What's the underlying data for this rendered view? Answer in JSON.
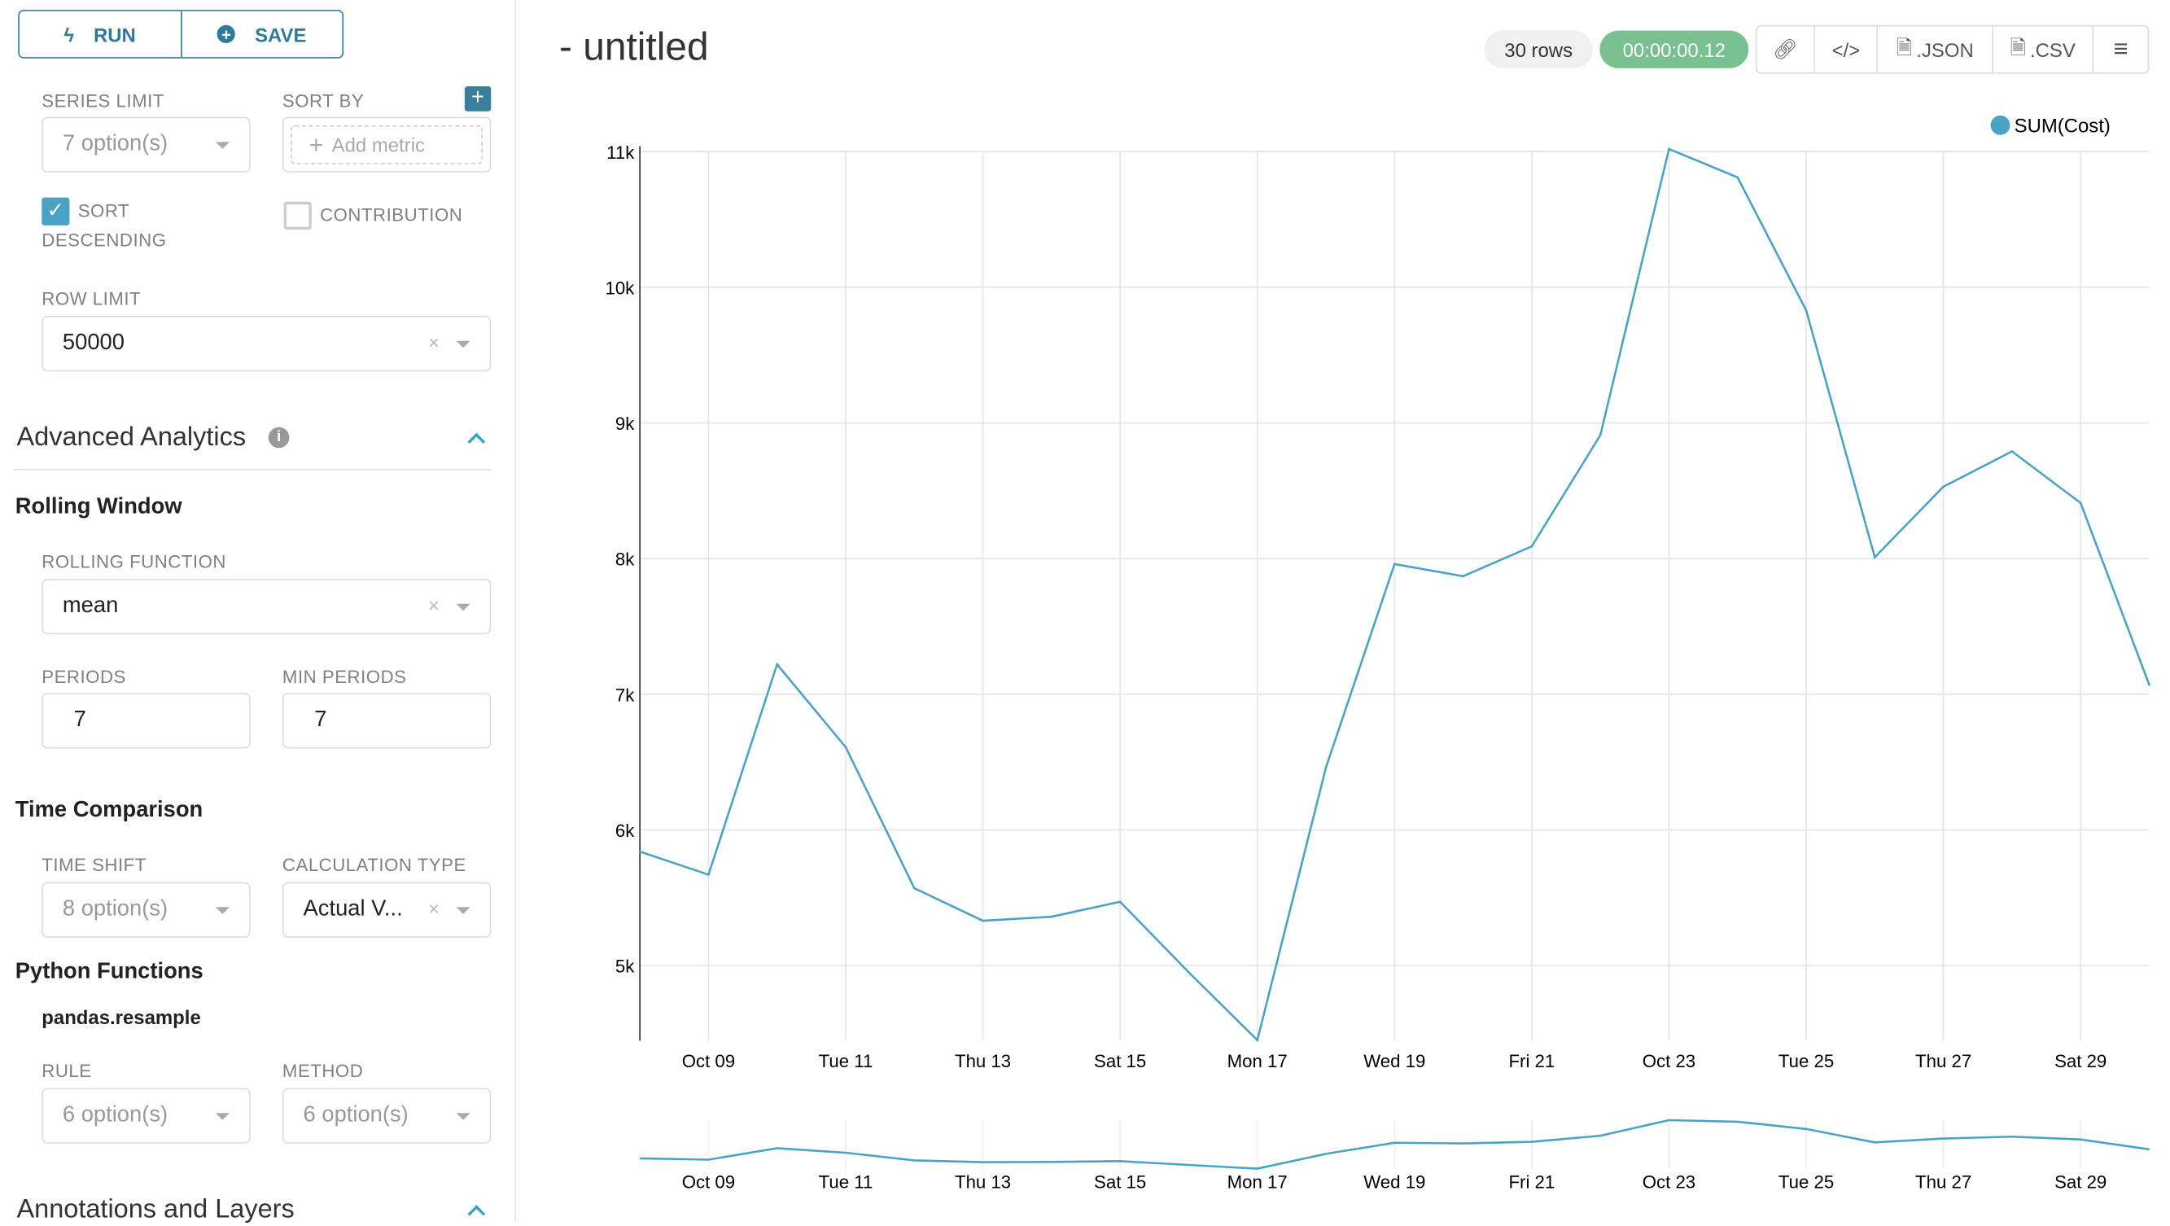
{
  "toolbar": {
    "run_label": "RUN",
    "save_label": "SAVE"
  },
  "query": {
    "series_limit": {
      "label": "SERIES LIMIT",
      "value": "7 option(s)"
    },
    "sort_by": {
      "label": "SORT BY",
      "placeholder": "Add metric"
    },
    "sort_descending": {
      "label_1": "SORT",
      "label_2": "DESCENDING",
      "checked": true
    },
    "contribution": {
      "label": "CONTRIBUTION",
      "checked": false
    },
    "row_limit": {
      "label": "ROW LIMIT",
      "value": "50000"
    }
  },
  "advanced": {
    "title": "Advanced Analytics",
    "rolling_window": {
      "title": "Rolling Window",
      "function_label": "ROLLING FUNCTION",
      "function_value": "mean",
      "periods_label": "PERIODS",
      "periods_value": "7",
      "min_periods_label": "MIN PERIODS",
      "min_periods_value": "7"
    },
    "time_comparison": {
      "title": "Time Comparison",
      "time_shift_label": "TIME SHIFT",
      "time_shift_value": "8 option(s)",
      "calc_type_label": "CALCULATION TYPE",
      "calc_type_value": "Actual V..."
    },
    "python_functions": {
      "title": "Python Functions",
      "subtitle": "pandas.resample",
      "rule_label": "RULE",
      "rule_value": "6 option(s)",
      "method_label": "METHOD",
      "method_value": "6 option(s)"
    }
  },
  "annotations": {
    "title": "Annotations and Layers"
  },
  "header": {
    "title": "- untitled",
    "rows": "30 rows",
    "timer": "00:00:00.12",
    "json_label": ".JSON",
    "csv_label": ".CSV"
  },
  "colors": {
    "accent": "#3b7f9a",
    "series": "#4aa3c5",
    "timer_bg": "#78c08f"
  },
  "chart_data": {
    "type": "line",
    "legend": [
      "SUM(Cost)"
    ],
    "legend_position": "top-right",
    "series": [
      {
        "name": "SUM(Cost)",
        "x": [
          "Oct 08",
          "Oct 09",
          "Oct 10",
          "Oct 11",
          "Oct 12",
          "Oct 13",
          "Oct 14",
          "Oct 15",
          "Oct 16",
          "Oct 17",
          "Oct 18",
          "Oct 19",
          "Oct 20",
          "Oct 21",
          "Oct 22",
          "Oct 23",
          "Oct 24",
          "Oct 25",
          "Oct 26",
          "Oct 27",
          "Oct 28",
          "Oct 29",
          "Oct 30"
        ],
        "values": [
          5840,
          5670,
          7220,
          6610,
          5570,
          5330,
          5360,
          5470,
          4950,
          4450,
          6460,
          7960,
          7870,
          8090,
          8910,
          11020,
          10810,
          9830,
          8010,
          8530,
          8790,
          8410,
          7070
        ]
      }
    ],
    "x_tick_labels": [
      "Oct 09",
      "Tue 11",
      "Thu 13",
      "Sat 15",
      "Mon 17",
      "Wed 19",
      "Fri 21",
      "Oct 23",
      "Tue 25",
      "Thu 27",
      "Sat 29"
    ],
    "y_ticks": [
      5000,
      6000,
      7000,
      8000,
      9000,
      10000,
      11000
    ],
    "y_tick_labels": [
      "5k",
      "6k",
      "7k",
      "8k",
      "9k",
      "10k",
      "11k"
    ],
    "ylim": [
      4450,
      11050
    ],
    "grid": true,
    "brush": true
  }
}
